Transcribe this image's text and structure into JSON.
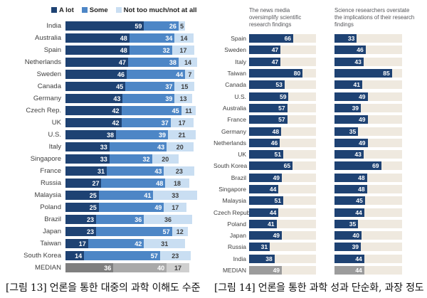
{
  "caption": {
    "fig13": "[그림 13] 언론을 통한 대중의 과학 이해도 수준",
    "fig14": "[그림 14] 언론을 통한 과학 성과 단순화, 과장 정도"
  },
  "colors": {
    "a_lot": "#1e4273",
    "some": "#4d86c6",
    "not_much": "#c9def2",
    "median_a_lot": "#7f7f7f",
    "median_some": "#a9a9a9",
    "median_not": "#cfcfcf",
    "bar": "#1e4273",
    "median_bar": "#9c9c9c",
    "track": "#efe9df",
    "value_dark": "#3d3d3d"
  },
  "chart_data": [
    {
      "type": "bar",
      "stacked": true,
      "orientation": "horizontal",
      "title": "",
      "legend_position": "top",
      "xlim": [
        0,
        100
      ],
      "categories": [
        "India",
        "Australia",
        "Spain",
        "Netherlands",
        "Sweden",
        "Canada",
        "Germany",
        "Czech Rep.",
        "UK",
        "U.S.",
        "Italy",
        "Singapore",
        "France",
        "Russia",
        "Malaysia",
        "Poland",
        "Brazil",
        "Japan",
        "Taiwan",
        "South Korea",
        "MEDIAN"
      ],
      "series": [
        {
          "name": "A lot",
          "values": [
            59,
            48,
            48,
            47,
            46,
            45,
            43,
            42,
            42,
            38,
            33,
            33,
            31,
            27,
            25,
            25,
            23,
            23,
            17,
            14,
            36
          ]
        },
        {
          "name": "Some",
          "values": [
            26,
            34,
            32,
            38,
            44,
            37,
            39,
            45,
            37,
            39,
            43,
            32,
            43,
            48,
            41,
            49,
            36,
            57,
            42,
            57,
            40
          ]
        },
        {
          "name": "Not too much/not at all",
          "values": [
            5,
            14,
            17,
            14,
            7,
            15,
            13,
            11,
            17,
            21,
            20,
            20,
            23,
            18,
            33,
            17,
            36,
            12,
            31,
            23,
            17
          ]
        }
      ]
    },
    {
      "type": "bar",
      "stacked": false,
      "orientation": "horizontal",
      "title": "",
      "xlim": [
        0,
        100
      ],
      "categories": [
        "Spain",
        "Sweden",
        "Italy",
        "Taiwan",
        "Canada",
        "U.S.",
        "Australia",
        "France",
        "Germany",
        "Netherlands",
        "UK",
        "South Korea",
        "Brazil",
        "Singapore",
        "Malaysia",
        "Czech Republic",
        "Poland",
        "Japan",
        "Russia",
        "India",
        "MEDIAN"
      ],
      "series": [
        {
          "name": "The news media oversimplify scientific research findings",
          "values": [
            66,
            47,
            47,
            80,
            53,
            59,
            57,
            57,
            48,
            46,
            51,
            65,
            49,
            44,
            51,
            44,
            41,
            49,
            31,
            38,
            49
          ]
        },
        {
          "name": "Science researchers overstate the implications of their research findings",
          "values": [
            33,
            46,
            43,
            85,
            41,
            49,
            39,
            49,
            35,
            49,
            43,
            69,
            48,
            48,
            45,
            44,
            35,
            40,
            39,
            44,
            44
          ]
        }
      ]
    }
  ]
}
